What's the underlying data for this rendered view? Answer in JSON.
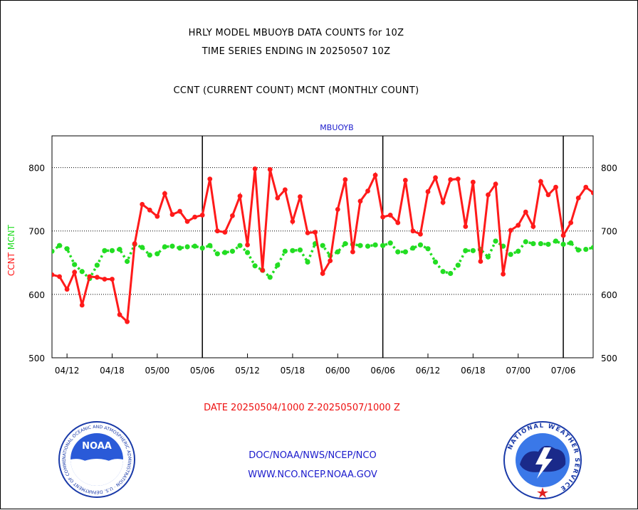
{
  "header": {
    "title_line1": "HRLY MODEL MBUOYB DATA COUNTS for 10Z",
    "title_line2": "TIME SERIES ENDING IN 20250507 10Z",
    "title_line3": "CCNT (CURRENT COUNT) MCNT (MONTHLY COUNT)"
  },
  "footer": {
    "date_range": "DATE 20250504/1000 Z-20250507/1000 Z",
    "org": "DOC/NOAA/NWS/NCEP/NCO",
    "url": "WWW.NCO.NCEP.NOAA.GOV"
  },
  "logos": {
    "left_name": "NOAA",
    "left_ring": "NATIONAL OCEANIC AND ATMOSPHERIC ADMINISTRATION · U.S. DEPARTMENT OF COMMERCE",
    "right_ring": "NATIONAL WEATHER SERVICE"
  },
  "colors": {
    "ccnt": "#ff1a1a",
    "mcnt": "#22dd22",
    "title_blue": "#1a1acc",
    "date_red": "#ee1111",
    "footer_blue": "#1a1acc"
  },
  "chart_data": {
    "type": "line",
    "title": "MBUOYB",
    "ylabel_left": "CCNT",
    "ylabel_right": "MCNT",
    "ylim": [
      500,
      850
    ],
    "yticks": [
      500,
      600,
      700,
      800
    ],
    "grid": true,
    "xtick_labels": [
      "04/12",
      "04/18",
      "05/00",
      "05/06",
      "05/12",
      "05/18",
      "06/00",
      "06/06",
      "06/12",
      "06/18",
      "07/00",
      "07/06"
    ],
    "xtick_index": [
      2,
      8,
      14,
      20,
      26,
      32,
      38,
      44,
      50,
      56,
      62,
      68
    ],
    "day_boundaries": [
      20,
      44,
      68
    ],
    "series": [
      {
        "name": "CCNT",
        "color": "#ff1a1a",
        "values": [
          631,
          628,
          608,
          635,
          583,
          628,
          627,
          624,
          624,
          568,
          557,
          680,
          742,
          733,
          723,
          759,
          726,
          731,
          715,
          722,
          725,
          782,
          700,
          698,
          724,
          755,
          678,
          798,
          638,
          797,
          752,
          765,
          715,
          754,
          697,
          698,
          633,
          653,
          734,
          781,
          667,
          747,
          763,
          788,
          722,
          725,
          713,
          780,
          700,
          695,
          762,
          784,
          745,
          781,
          782,
          707,
          777,
          652,
          757,
          774,
          632,
          701,
          709,
          730,
          707,
          778,
          757,
          769,
          693,
          713,
          752,
          769,
          760
        ]
      },
      {
        "name": "MCNT",
        "color": "#22dd22",
        "values": [
          668,
          677,
          672,
          647,
          636,
          625,
          646,
          669,
          669,
          671,
          652,
          679,
          674,
          662,
          664,
          675,
          676,
          673,
          675,
          676,
          673,
          677,
          664,
          666,
          668,
          677,
          666,
          645,
          638,
          627,
          646,
          668,
          669,
          670,
          651,
          680,
          677,
          661,
          667,
          680,
          679,
          677,
          676,
          678,
          677,
          681,
          667,
          667,
          673,
          678,
          672,
          651,
          636,
          633,
          646,
          669,
          669,
          671,
          659,
          684,
          676,
          663,
          668,
          683,
          680,
          680,
          679,
          684,
          679,
          681,
          670,
          671,
          674
        ]
      }
    ]
  }
}
